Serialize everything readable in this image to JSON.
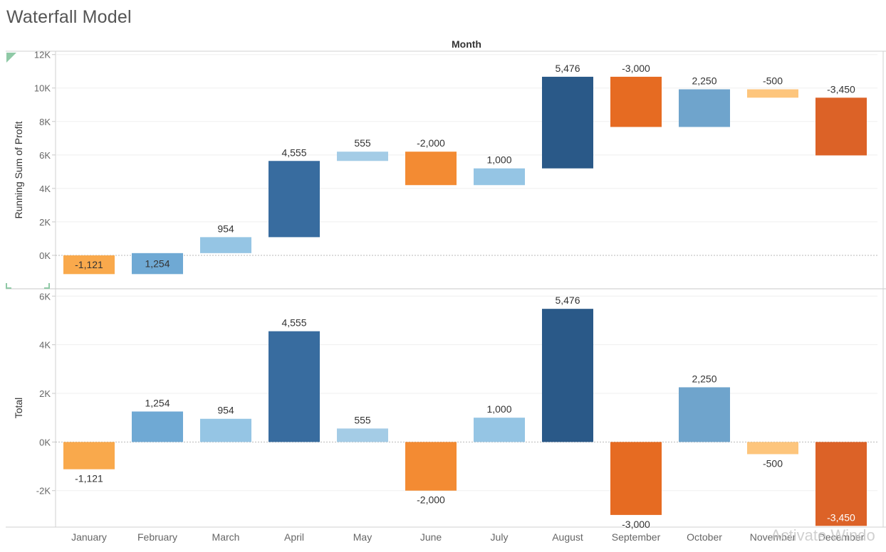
{
  "title": "Waterfall Model",
  "watermark": "Activate Windo",
  "chart_data": {
    "type": "bar",
    "header": "Month",
    "categories": [
      "January",
      "February",
      "March",
      "April",
      "May",
      "June",
      "July",
      "August",
      "September",
      "October",
      "November",
      "December"
    ],
    "deltas": [
      -1121,
      1254,
      954,
      4555,
      555,
      -2000,
      1000,
      5476,
      -3000,
      2250,
      -500,
      -3450
    ],
    "value_labels": [
      "-1,121",
      "1,254",
      "954",
      "4,555",
      "555",
      "-2,000",
      "1,000",
      "5,476",
      "-3,000",
      "2,250",
      "-500",
      "-3,450"
    ],
    "colors": [
      "#f9a94c",
      "#6fa9d4",
      "#95c5e4",
      "#386c9f",
      "#a4cce6",
      "#f38b33",
      "#95c5e4",
      "#2a5988",
      "#e66b22",
      "#6fa4cc",
      "#fdc57c",
      "#dc6227"
    ],
    "panes": [
      {
        "ylabel": "Running Sum of Profit",
        "ylim": [
          -2000,
          12200
        ],
        "ticks": [
          0,
          2000,
          4000,
          6000,
          8000,
          10000,
          12000
        ],
        "tick_labels": [
          "0K",
          "2K",
          "4K",
          "6K",
          "8K",
          "10K",
          "12K"
        ],
        "series": [
          {
            "name": "Running Sum of Profit",
            "values": [
              -1121,
              133,
              1087,
              5642,
              6197,
              4197,
              5197,
              10673,
              7673,
              9923,
              9423,
              5973
            ]
          }
        ]
      },
      {
        "ylabel": "Total",
        "ylim": [
          -3500,
          6300
        ],
        "ticks": [
          -2000,
          0,
          2000,
          4000,
          6000
        ],
        "tick_labels": [
          "-2K",
          "0K",
          "2K",
          "4K",
          "6K"
        ],
        "series": [
          {
            "name": "Total",
            "values": [
              -1121,
              1254,
              954,
              4555,
              555,
              -2000,
              1000,
              5476,
              -3000,
              2250,
              -500,
              -3450
            ]
          }
        ]
      }
    ],
    "grid": true
  }
}
